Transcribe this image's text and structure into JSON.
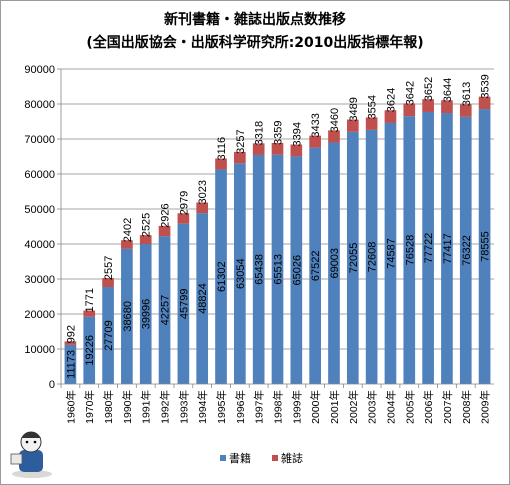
{
  "chart_data": {
    "type": "bar",
    "stacked": true,
    "title": "新刊書籍・雑誌出版点数推移",
    "subtitle": "(全国出版協会・出版科学研究所:2010出版指標年報)",
    "categories": [
      "1960年",
      "1970年",
      "1980年",
      "1990年",
      "1991年",
      "1992年",
      "1993年",
      "1994年",
      "1995年",
      "1996年",
      "1997年",
      "1998年",
      "1999年",
      "2000年",
      "2001年",
      "2002年",
      "2003年",
      "2004年",
      "2005年",
      "2006年",
      "2007年",
      "2008年",
      "2009年"
    ],
    "series": [
      {
        "name": "書籍",
        "color": "#4f81bd",
        "values": [
          11173,
          19226,
          27709,
          38680,
          39996,
          42257,
          45799,
          48824,
          61302,
          63054,
          65438,
          65513,
          65026,
          67522,
          69003,
          72055,
          72608,
          74587,
          76528,
          77722,
          77417,
          76322,
          78555
        ]
      },
      {
        "name": "雑誌",
        "color": "#c0504d",
        "values": [
          992,
          1771,
          2557,
          2402,
          2525,
          2926,
          2979,
          3023,
          3116,
          3257,
          3318,
          3359,
          3394,
          3433,
          3460,
          3489,
          3554,
          3624,
          3642,
          3652,
          3644,
          3613,
          3539
        ]
      }
    ],
    "ylim": [
      0,
      90000
    ],
    "yticks": [
      "0",
      "10000",
      "20000",
      "30000",
      "40000",
      "50000",
      "60000",
      "70000",
      "80000",
      "90000"
    ],
    "grid": true,
    "legend_position": "bottom"
  }
}
